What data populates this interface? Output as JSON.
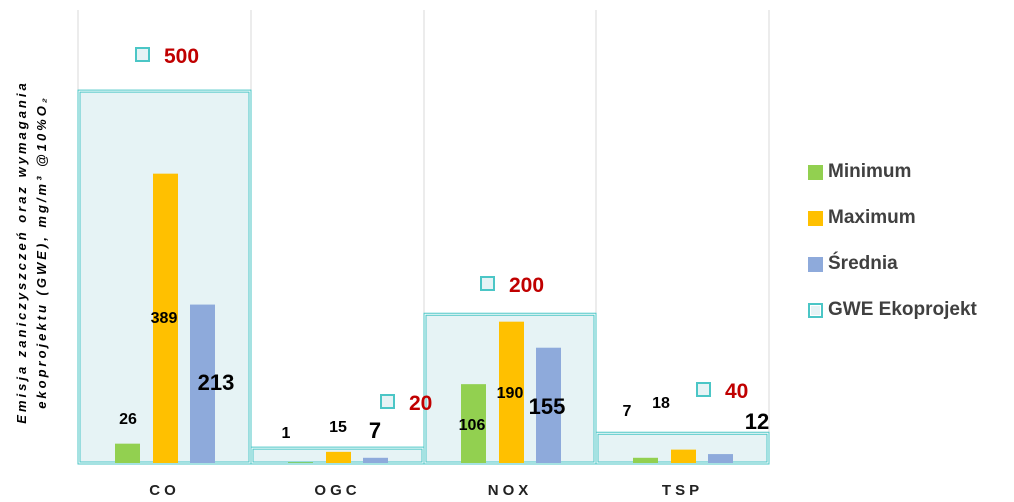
{
  "chart_data": {
    "type": "bar",
    "categories": [
      "CO",
      "OGC",
      "NOX",
      "TSP"
    ],
    "series": [
      {
        "name": "Minimum",
        "values": [
          26,
          1,
          106,
          7
        ],
        "color": "#92d050"
      },
      {
        "name": "Maximum",
        "values": [
          389,
          15,
          190,
          18
        ],
        "color": "#ffc000"
      },
      {
        "name": "Średnia",
        "values": [
          213,
          7,
          155,
          12
        ],
        "color": "#8eaadb"
      }
    ],
    "limits": {
      "name": "GWE Ekoprojekt",
      "values": [
        500,
        20,
        200,
        40
      ],
      "color": "#4bc6c6"
    },
    "ylabel_line1": "Emisja zaniczyszczeń oraz wymagania",
    "ylabel_line2": "ekoprojektu (GWE), mg/m³ @10%O₂",
    "legend_position": "right",
    "grid": "vertical category separators"
  }
}
